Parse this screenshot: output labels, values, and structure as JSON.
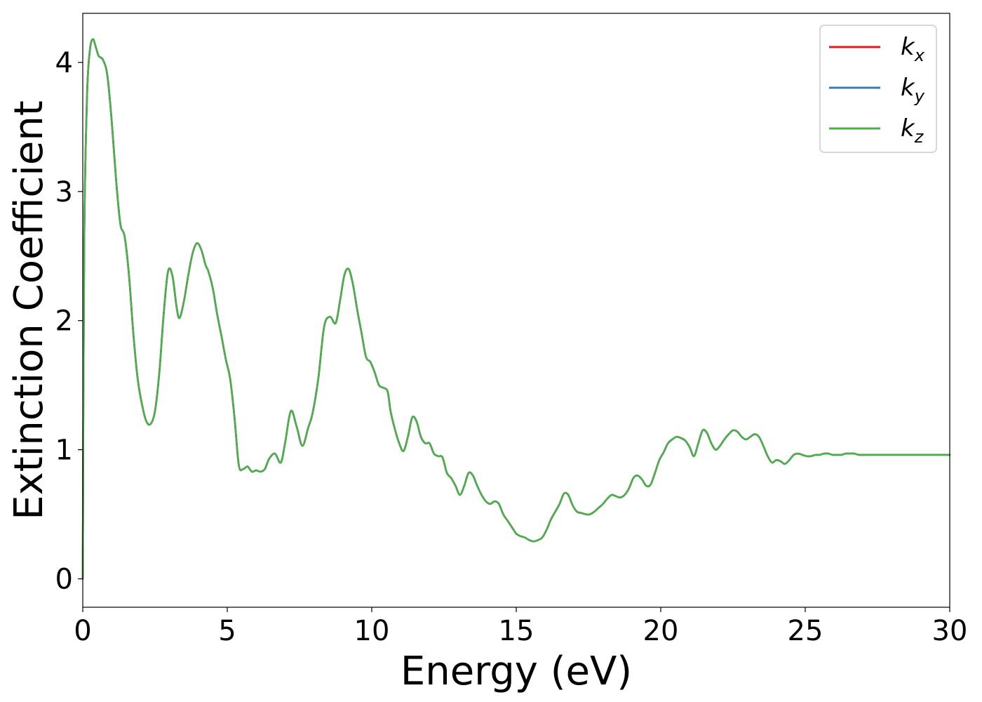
{
  "chart_data": {
    "type": "line",
    "xlabel": "Energy (eV)",
    "ylabel": "Extinction Coefficient",
    "xlim": [
      0,
      30
    ],
    "ylim": [
      -0.22,
      4.38
    ],
    "xticks": [
      "0",
      "5",
      "10",
      "15",
      "20",
      "25",
      "30"
    ],
    "yticks": [
      "0",
      "1",
      "2",
      "3",
      "4"
    ],
    "grid": false,
    "legend_position": "top-right",
    "x": [
      0,
      0.05,
      0.15,
      0.25,
      0.35,
      0.45,
      0.55,
      0.7,
      0.85,
      1.0,
      1.15,
      1.3,
      1.45,
      1.6,
      1.75,
      1.9,
      2.05,
      2.2,
      2.35,
      2.5,
      2.65,
      2.8,
      2.95,
      3.1,
      3.25,
      3.35,
      3.5,
      3.65,
      3.8,
      3.95,
      4.1,
      4.25,
      4.35,
      4.5,
      4.65,
      4.8,
      4.95,
      5.1,
      5.25,
      5.4,
      5.55,
      5.7,
      5.85,
      6.0,
      6.15,
      6.3,
      6.45,
      6.65,
      6.85,
      7.0,
      7.2,
      7.4,
      7.6,
      7.8,
      7.95,
      8.15,
      8.35,
      8.55,
      8.75,
      8.9,
      9.05,
      9.2,
      9.35,
      9.5,
      9.65,
      9.8,
      9.95,
      10.1,
      10.25,
      10.4,
      10.55,
      10.65,
      10.8,
      10.95,
      11.1,
      11.25,
      11.4,
      11.55,
      11.7,
      11.85,
      12.0,
      12.15,
      12.3,
      12.45,
      12.6,
      12.75,
      12.9,
      13.05,
      13.2,
      13.35,
      13.5,
      13.65,
      13.8,
      13.95,
      14.1,
      14.25,
      14.4,
      14.55,
      14.7,
      14.85,
      15.0,
      15.15,
      15.3,
      15.45,
      15.6,
      15.75,
      15.9,
      16.05,
      16.2,
      16.35,
      16.5,
      16.65,
      16.8,
      16.95,
      17.1,
      17.25,
      17.4,
      17.55,
      17.7,
      17.85,
      18.0,
      18.15,
      18.3,
      18.45,
      18.6,
      18.75,
      18.9,
      19.05,
      19.2,
      19.35,
      19.5,
      19.65,
      19.8,
      19.95,
      20.1,
      20.25,
      20.4,
      20.55,
      20.7,
      20.85,
      21.0,
      21.15,
      21.3,
      21.45,
      21.6,
      21.75,
      21.9,
      22.05,
      22.2,
      22.35,
      22.5,
      22.65,
      22.8,
      22.95,
      23.1,
      23.25,
      23.4,
      23.55,
      23.7,
      23.85,
      24.0,
      24.15,
      24.3,
      24.45,
      24.6,
      24.75,
      24.9,
      25.05,
      25.2,
      25.35,
      25.5,
      25.65,
      25.8,
      25.95,
      26.1,
      26.25,
      26.4,
      26.55,
      26.7,
      26.85,
      27.0,
      27.15,
      27.3,
      27.45,
      27.6,
      27.75,
      27.9,
      28.05,
      28.2,
      28.35,
      28.5,
      28.65,
      28.8,
      28.95,
      29.1,
      29.25,
      29.4,
      29.55,
      29.7,
      29.85,
      30.0
    ],
    "series": [
      {
        "name": "k_x",
        "color": "#e41a1c"
      },
      {
        "name": "k_y",
        "color": "#377eb8"
      },
      {
        "name": "k_z",
        "color": "#4daf4a"
      }
    ],
    "values": [
      0.0,
      2.6,
      3.75,
      4.1,
      4.18,
      4.12,
      4.05,
      4.02,
      3.9,
      3.55,
      3.1,
      2.75,
      2.65,
      2.35,
      1.9,
      1.55,
      1.35,
      1.22,
      1.2,
      1.3,
      1.6,
      2.05,
      2.38,
      2.35,
      2.1,
      2.02,
      2.15,
      2.35,
      2.52,
      2.6,
      2.55,
      2.43,
      2.38,
      2.25,
      2.05,
      1.88,
      1.7,
      1.55,
      1.25,
      0.88,
      0.85,
      0.87,
      0.83,
      0.84,
      0.83,
      0.85,
      0.93,
      0.97,
      0.9,
      1.05,
      1.3,
      1.18,
      1.03,
      1.17,
      1.28,
      1.55,
      1.95,
      2.03,
      1.98,
      2.15,
      2.35,
      2.4,
      2.28,
      2.08,
      1.9,
      1.72,
      1.68,
      1.6,
      1.5,
      1.48,
      1.45,
      1.3,
      1.16,
      1.05,
      0.99,
      1.1,
      1.25,
      1.22,
      1.1,
      1.05,
      1.05,
      0.97,
      0.95,
      0.94,
      0.82,
      0.78,
      0.72,
      0.65,
      0.72,
      0.82,
      0.8,
      0.72,
      0.65,
      0.6,
      0.58,
      0.6,
      0.58,
      0.5,
      0.45,
      0.4,
      0.35,
      0.33,
      0.32,
      0.3,
      0.29,
      0.3,
      0.32,
      0.38,
      0.46,
      0.52,
      0.58,
      0.66,
      0.65,
      0.57,
      0.52,
      0.51,
      0.5,
      0.5,
      0.52,
      0.55,
      0.58,
      0.62,
      0.65,
      0.64,
      0.63,
      0.65,
      0.7,
      0.78,
      0.8,
      0.77,
      0.72,
      0.73,
      0.82,
      0.92,
      0.98,
      1.05,
      1.08,
      1.1,
      1.09,
      1.07,
      1.02,
      0.95,
      1.05,
      1.15,
      1.13,
      1.05,
      1.0,
      1.03,
      1.08,
      1.12,
      1.15,
      1.14,
      1.1,
      1.08,
      1.1,
      1.12,
      1.1,
      1.03,
      0.95,
      0.9,
      0.92,
      0.91,
      0.89,
      0.92,
      0.96,
      0.97,
      0.96,
      0.95,
      0.95,
      0.96,
      0.96,
      0.97,
      0.97,
      0.96,
      0.96,
      0.96,
      0.97,
      0.97,
      0.97,
      0.96,
      0.96,
      0.96,
      0.96,
      0.96,
      0.96,
      0.96,
      0.96,
      0.96,
      0.96,
      0.96,
      0.96,
      0.96,
      0.96,
      0.96,
      0.96,
      0.96,
      0.96,
      0.96,
      0.96,
      0.96,
      0.96
    ]
  }
}
